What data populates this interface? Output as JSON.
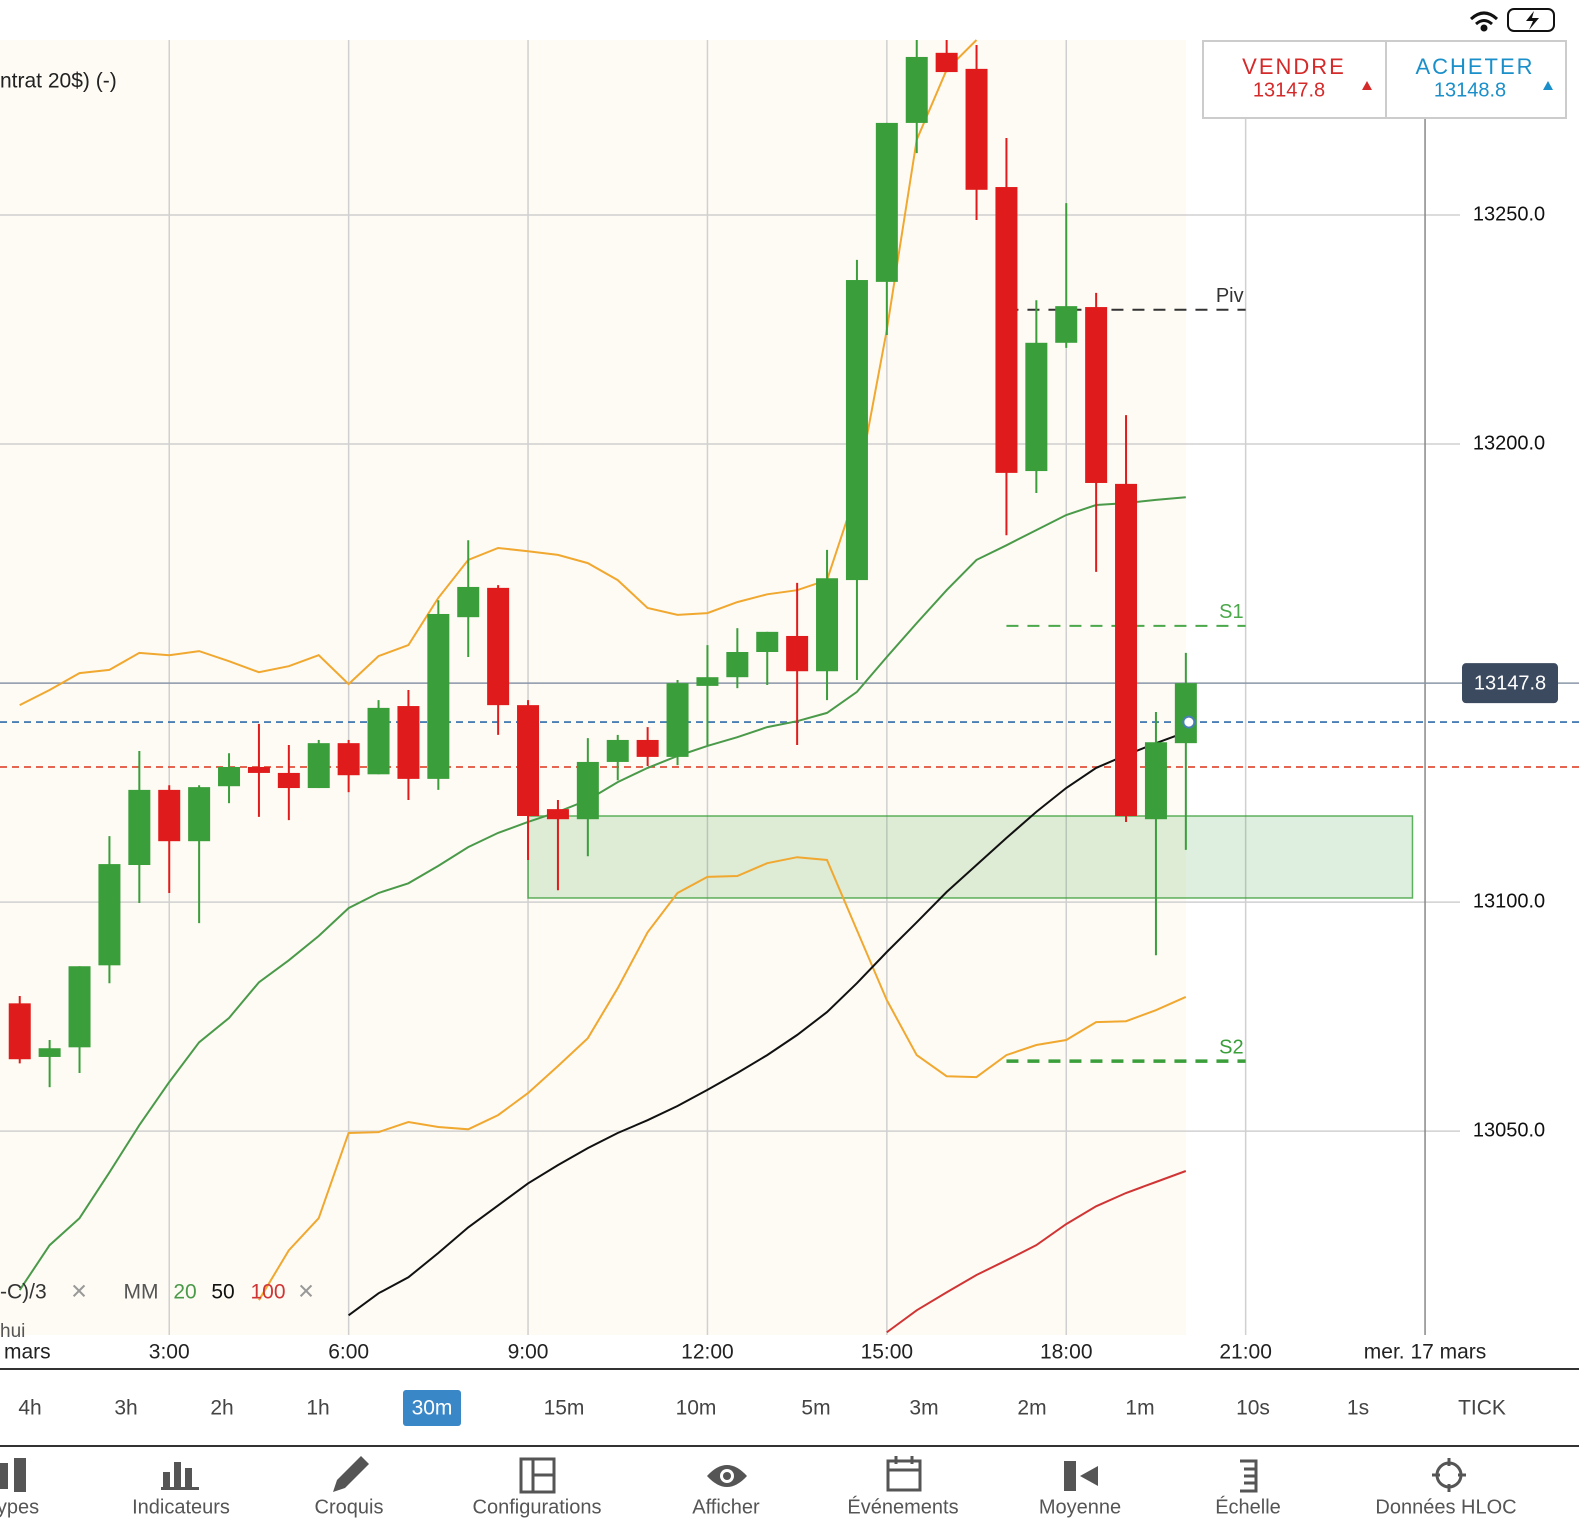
{
  "header": {
    "title": "ntrat 20$) (-)"
  },
  "trade_panel": {
    "sell_label": "VENDRE",
    "sell_price": "13147.8",
    "buy_label": "ACHETER",
    "buy_price": "13148.8"
  },
  "chart_data": {
    "type": "candlestick",
    "xlim": [
      0.17,
      24.25
    ],
    "ylim": [
      13005.5,
      13288.2
    ],
    "xticks": [
      {
        "value": 3,
        "label": "3:00"
      },
      {
        "value": 6,
        "label": "6:00"
      },
      {
        "value": 9,
        "label": "9:00"
      },
      {
        "value": 12,
        "label": "12:00"
      },
      {
        "value": 15,
        "label": "15:00"
      },
      {
        "value": 18,
        "label": "18:00"
      },
      {
        "value": 21,
        "label": "21:00"
      },
      {
        "value": 24,
        "label": "mer. 17 mars"
      }
    ],
    "date_label_left": "mars",
    "yticks": [
      {
        "value": 13050,
        "label": "13050.0"
      },
      {
        "value": 13100,
        "label": "13100.0"
      },
      {
        "value": 13200,
        "label": "13200.0"
      },
      {
        "value": 13250,
        "label": "13250.0"
      }
    ],
    "grid": true,
    "up_color": "#3a9e3a",
    "down_color": "#e01b1b",
    "x": [
      0.5,
      1.0,
      1.5,
      2.0,
      2.5,
      3.0,
      3.5,
      4.0,
      4.5,
      5.0,
      5.5,
      6.0,
      6.5,
      7.0,
      7.5,
      8.0,
      8.5,
      9.0,
      9.5,
      10.0,
      10.5,
      11.0,
      11.5,
      12.0,
      12.5,
      13.0,
      13.5,
      14.0,
      14.5,
      15.0,
      15.5,
      16.0,
      16.5,
      17.0,
      17.5,
      18.0,
      18.5,
      19.0,
      19.5,
      20.0
    ],
    "open": [
      13077.9,
      13066.2,
      13068.3,
      13086.2,
      13108.1,
      13124.5,
      13113.3,
      13125.3,
      13129.5,
      13128.2,
      13124.9,
      13134.7,
      13127.9,
      13142.8,
      13126.9,
      13162.2,
      13168.6,
      13143.0,
      13120.3,
      13118.1,
      13130.6,
      13135.4,
      13131.7,
      13147.2,
      13149.1,
      13154.6,
      13158.1,
      13150.4,
      13170.3,
      13235.4,
      13270.1,
      13285.4,
      13281.9,
      13256.1,
      13194.1,
      13222.1,
      13229.9,
      13191.3,
      13118.1,
      13134.7
    ],
    "high": [
      13079.5,
      13069.9,
      13086.0,
      13114.4,
      13133.0,
      13125.5,
      13125.5,
      13132.5,
      13138.9,
      13134.3,
      13135.4,
      13135.4,
      13144.1,
      13146.3,
      13165.9,
      13179.0,
      13169.2,
      13144.1,
      13122.3,
      13135.8,
      13136.5,
      13138.2,
      13148.5,
      13156.1,
      13159.8,
      13159.0,
      13169.7,
      13176.9,
      13240.2,
      13270.1,
      13288.2,
      13288.2,
      13287.1,
      13266.8,
      13231.4,
      13252.6,
      13233.0,
      13206.3,
      13141.5,
      13154.4
    ],
    "low": [
      13064.8,
      13059.6,
      13062.7,
      13082.3,
      13099.8,
      13102.0,
      13095.4,
      13121.6,
      13118.6,
      13117.9,
      13124.9,
      13124.0,
      13127.9,
      13122.3,
      13124.5,
      13153.5,
      13136.5,
      13109.2,
      13102.6,
      13110.0,
      13126.6,
      13129.7,
      13129.9,
      13134.3,
      13146.7,
      13147.4,
      13134.3,
      13144.1,
      13148.5,
      13223.8,
      13263.5,
      13281.2,
      13248.9,
      13180.1,
      13189.3,
      13221.0,
      13172.1,
      13117.5,
      13088.4,
      13111.4
    ],
    "close": [
      13065.7,
      13068.1,
      13086.0,
      13108.3,
      13124.5,
      13113.3,
      13125.1,
      13129.5,
      13128.2,
      13124.9,
      13134.7,
      13127.7,
      13142.4,
      13126.9,
      13162.9,
      13168.8,
      13143.0,
      13118.8,
      13118.1,
      13130.6,
      13135.4,
      13131.7,
      13147.8,
      13149.1,
      13154.6,
      13159.0,
      13150.4,
      13170.7,
      13235.8,
      13270.1,
      13284.5,
      13281.2,
      13255.5,
      13193.7,
      13222.1,
      13230.1,
      13191.5,
      13118.8,
      13134.9,
      13147.8
    ],
    "lines": [
      {
        "color": "#f0a830",
        "values": [
          13143.0,
          13146.3,
          13150.0,
          13150.7,
          13154.4,
          13153.9,
          13154.8,
          13152.6,
          13150.2,
          13151.5,
          13153.9,
          13147.6,
          13153.7,
          13156.1,
          13166.4,
          13174.7,
          13177.3,
          13176.6,
          13175.8,
          13174.0,
          13170.3,
          13164.2,
          13162.7,
          13163.1,
          13165.5,
          13167.2,
          13168.1,
          13170.3,
          13190.0,
          13224.9,
          13266.4,
          13281.7,
          13288.2,
          null,
          null,
          null,
          null,
          null,
          null,
          null
        ]
      },
      {
        "color": "#f0a830",
        "values": [
          null,
          null,
          null,
          null,
          null,
          null,
          null,
          null,
          13013.1,
          13024.0,
          13031.0,
          13049.6,
          13049.8,
          13052.0,
          13050.9,
          13050.4,
          13053.5,
          13058.3,
          13064.2,
          13070.3,
          13081.2,
          13093.4,
          13102.0,
          13105.5,
          13105.7,
          13108.5,
          13109.8,
          13109.2,
          13093.9,
          13078.6,
          13066.6,
          13062.0,
          13061.8,
          13066.6,
          13068.8,
          13069.9,
          13073.8,
          13074.0,
          13076.4,
          13079.3
        ]
      },
      {
        "color": "#4a9a4a",
        "values": [
          13015.3,
          13025.1,
          13031.0,
          13041.0,
          13051.3,
          13060.7,
          13069.4,
          13074.7,
          13082.5,
          13087.3,
          13092.6,
          13098.7,
          13102.0,
          13104.1,
          13107.9,
          13112.0,
          13115.1,
          13117.5,
          13119.7,
          13122.3,
          13126.2,
          13129.3,
          13131.9,
          13134.1,
          13136.0,
          13138.2,
          13139.5,
          13141.3,
          13145.9,
          13153.5,
          13160.9,
          13168.1,
          13174.7,
          13177.9,
          13181.2,
          13184.5,
          13186.7,
          13187.1,
          13187.8,
          13188.4
        ]
      },
      {
        "color": "#111111",
        "values": [
          null,
          null,
          null,
          null,
          null,
          null,
          null,
          null,
          null,
          null,
          null,
          13009.8,
          13014.6,
          13018.1,
          13023.4,
          13029.0,
          13033.8,
          13038.6,
          13042.6,
          13046.3,
          13049.6,
          13052.4,
          13055.5,
          13059.0,
          13062.7,
          13066.6,
          13071.0,
          13076.0,
          13082.3,
          13089.1,
          13095.6,
          13102.2,
          13108.1,
          13114.0,
          13119.7,
          13124.9,
          13129.3,
          13132.1,
          13134.7,
          13137.1
        ]
      },
      {
        "color": "#d03535",
        "values": [
          null,
          null,
          null,
          null,
          null,
          null,
          null,
          null,
          null,
          null,
          null,
          null,
          null,
          null,
          null,
          null,
          null,
          null,
          null,
          null,
          null,
          null,
          null,
          null,
          null,
          null,
          null,
          null,
          null,
          13006.1,
          13010.9,
          13014.8,
          13018.6,
          13021.8,
          13025.1,
          13029.7,
          13033.6,
          13036.5,
          13038.9,
          13041.3
        ]
      }
    ],
    "zone": {
      "from": 9.0,
      "to": 23.79,
      "low": 13100.9,
      "high": 13118.8,
      "color": "#3a9e3a"
    },
    "levels": [
      {
        "label": "Piv",
        "value": 13229.3,
        "start": 17,
        "end": 21,
        "color": "#333333"
      },
      {
        "label": "S1",
        "value": 13160.3,
        "start": 17,
        "end": 21,
        "color": "#4aa84a"
      },
      {
        "label": "S2",
        "value": 13065.3,
        "start": 17,
        "end": 21,
        "color": "#3a9e3a"
      }
    ],
    "price_lines": [
      {
        "value": 13139.3,
        "color": "#4a7fb5"
      },
      {
        "value": 13129.5,
        "color": "#e0503a"
      }
    ],
    "last_price": 13147.8,
    "legend": {
      "first": "-C)/3",
      "close": "✕",
      "ma_label": "MM",
      "ma": [
        "20",
        "50",
        "100"
      ],
      "close2": "✕",
      "extra": "hui"
    }
  },
  "timeframes": {
    "items": [
      "4h",
      "3h",
      "2h",
      "1h",
      "30m",
      "15m",
      "10m",
      "5m",
      "3m",
      "2m",
      "1m",
      "10s",
      "1s",
      "TICK"
    ],
    "selected": "30m"
  },
  "toolbar": [
    "ypes",
    "Indicateurs",
    "Croquis",
    "Configurations",
    "Afficher",
    "Événements",
    "Moyenne",
    "Échelle",
    "Données HLOC"
  ]
}
